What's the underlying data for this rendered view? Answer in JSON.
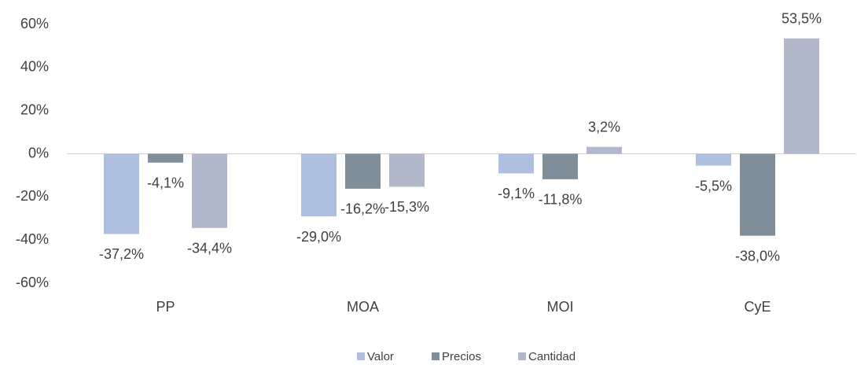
{
  "chart_data": {
    "type": "bar",
    "categories": [
      "PP",
      "MOA",
      "MOI",
      "CyE"
    ],
    "series": [
      {
        "name": "Valor",
        "color": "#aebfe0",
        "values": [
          -37.2,
          -29.0,
          -9.1,
          -5.5
        ],
        "value_labels": [
          "-37,2%",
          "-29,0%",
          "-9,1%",
          "-5,5%"
        ]
      },
      {
        "name": "Precios",
        "color": "#7f8e99",
        "values": [
          -4.1,
          -16.2,
          -11.8,
          -38.0
        ],
        "value_labels": [
          "-4,1%",
          "-16,2%",
          "-11,8%",
          "-38,0%"
        ]
      },
      {
        "name": "Cantidad",
        "color": "#b0b8c9",
        "values": [
          -34.4,
          -15.3,
          3.2,
          53.5
        ],
        "value_labels": [
          "-34,4%",
          "-15,3%",
          "3,2%",
          "53,5%"
        ]
      }
    ],
    "ylim": [
      -60,
      60
    ],
    "yticks": [
      {
        "value": -60,
        "label": "-60%"
      },
      {
        "value": -40,
        "label": "-40%"
      },
      {
        "value": -20,
        "label": "-20%"
      },
      {
        "value": 0,
        "label": "0%"
      },
      {
        "value": 20,
        "label": "20%"
      },
      {
        "value": 40,
        "label": "40%"
      },
      {
        "value": 60,
        "label": "60%"
      }
    ],
    "legend": "bottom"
  }
}
